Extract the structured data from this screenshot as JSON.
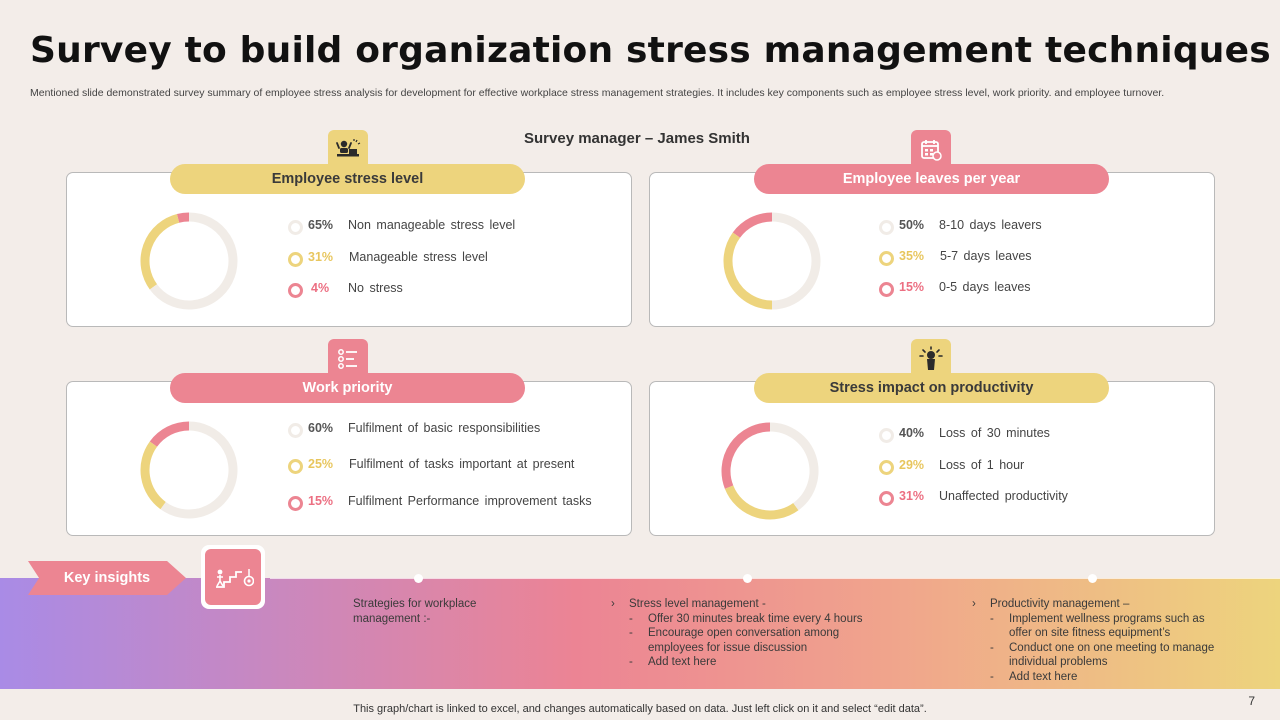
{
  "title": "Survey to build organization stress management techniques",
  "subtitle": "Mentioned slide demonstrated survey summary of employee stress analysis for development for effective workplace stress management strategies. It includes key components such as employee stress level, work priority. and employee turnover.",
  "manager": "Survey manager – James Smith",
  "colors": {
    "yellow": "#edd47d",
    "pink": "#ec8592",
    "light": "#f1ece7"
  },
  "cards": [
    {
      "title": "Employee stress level",
      "icon": "stressed-worker-icon",
      "accent": "yellow",
      "segments": [
        {
          "pct": "65%",
          "value": 65,
          "label": "Non manageable stress level"
        },
        {
          "pct": "31%",
          "value": 31,
          "label": "Manageable stress level"
        },
        {
          "pct": "4%",
          "value": 4,
          "label": "No stress"
        }
      ]
    },
    {
      "title": "Employee leaves per year",
      "icon": "calendar-icon",
      "accent": "pink",
      "segments": [
        {
          "pct": "50%",
          "value": 50,
          "label": "8-10 days leavers"
        },
        {
          "pct": "35%",
          "value": 35,
          "label": "5-7 days leaves"
        },
        {
          "pct": "15%",
          "value": 15,
          "label": "0-5 days leaves"
        }
      ]
    },
    {
      "title": "Work priority",
      "icon": "priority-list-icon",
      "accent": "pink",
      "segments": [
        {
          "pct": "60%",
          "value": 60,
          "label": "Fulfilment of basic responsibilities"
        },
        {
          "pct": "25%",
          "value": 25,
          "label": "Fulfilment of tasks important at present"
        },
        {
          "pct": "15%",
          "value": 15,
          "label": "Fulfilment Performance improvement tasks"
        }
      ]
    },
    {
      "title": "Stress impact on productivity",
      "icon": "stress-burst-icon",
      "accent": "yellow",
      "segments": [
        {
          "pct": "40%",
          "value": 40,
          "label": "Loss of 30 minutes"
        },
        {
          "pct": "29%",
          "value": 29,
          "label": "Loss of 1 hour"
        },
        {
          "pct": "31%",
          "value": 31,
          "label": "Unaffected productivity"
        }
      ]
    }
  ],
  "insights": {
    "tag": "Key insights",
    "icon": "career-steps-icon",
    "col1": {
      "head": "Strategies for workplace management :-"
    },
    "col2": {
      "head": "Stress level management -",
      "items": [
        "Offer 30 minutes break time every 4 hours",
        "Encourage open conversation among employees for issue discussion",
        "Add text here"
      ]
    },
    "col3": {
      "head": "Productivity management –",
      "items": [
        "Implement wellness programs such as offer on site fitness equipment’s",
        "Conduct one on one meeting to manage individual problems",
        "Add text here"
      ]
    }
  },
  "footer": "This graph/chart is linked to excel, and changes automatically based on data. Just left click on it and select “edit data”.",
  "page_number": "7"
}
